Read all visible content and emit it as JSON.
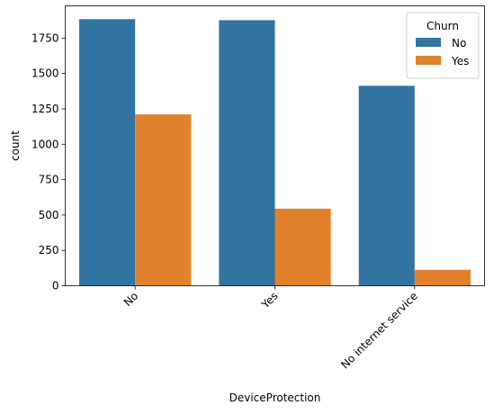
{
  "chart_data": {
    "type": "bar",
    "xlabel": "DeviceProtection",
    "ylabel": "count",
    "categories": [
      "No",
      "Yes",
      "No internet service"
    ],
    "series": [
      {
        "name": "No",
        "values": [
          1884,
          1877,
          1413
        ],
        "color": "#3274a1"
      },
      {
        "name": "Yes",
        "values": [
          1211,
          545,
          113
        ],
        "color": "#e1812c"
      }
    ],
    "ylim": [
      0,
      1978
    ],
    "yticks": [
      0,
      250,
      500,
      750,
      1000,
      1250,
      1500,
      1750
    ],
    "legend": {
      "title": "Churn",
      "placement": "top-right"
    },
    "grid": false
  }
}
